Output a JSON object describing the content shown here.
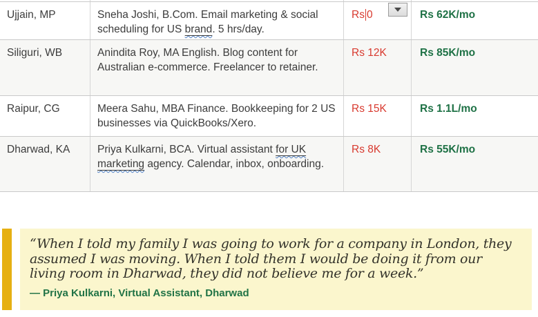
{
  "colors": {
    "cost_red": "#d8392e",
    "income_green": "#1e7145",
    "attribution_green": "#217346",
    "quote_background": "#fbf6cd",
    "quote_accent_bar": "#e6b012",
    "squiggle_blue": "#4f81c7",
    "row_band_gray": "#f7f7f5"
  },
  "table": {
    "rows": [
      {
        "location": "Ujjain, MP",
        "desc_before": "Sneha Joshi, B.Com. Email marketing & social scheduling for US ",
        "desc_underlined": "brand",
        "desc_after": ". 5 hrs/day.",
        "cost_before": "Rs",
        "cost_after": "0",
        "income": "Rs 62K/mo"
      },
      {
        "location": "Siliguri, WB",
        "description": "Anindita Roy, MA English. Blog content for Australian e-commerce. Freelancer to retainer.",
        "cost": "Rs 12K",
        "income": "Rs 85K/mo"
      },
      {
        "location": "Raipur, CG",
        "description": "Meera Sahu, MBA Finance. Bookkeeping for 2 US businesses via QuickBooks/Xero.",
        "cost": "Rs 15K",
        "income": "Rs 1.1L/mo"
      },
      {
        "location": "Dharwad, KA",
        "desc_before": "Priya Kulkarni, BCA. Virtual assistant ",
        "desc_underlined_1": "for UK",
        "desc_mid": " ",
        "desc_underlined_2": "marketing",
        "desc_after": " agency. Calendar, inbox, onboarding.",
        "cost": "Rs 8K",
        "income": "Rs 55K/mo"
      }
    ]
  },
  "quote": {
    "text": "“When I told my family I was going to work for a company in London, they assumed I was moving. When I told them I would be doing it from our living room in Dharwad, they did not believe me for a week.”",
    "attribution": "— Priya Kulkarni, Virtual Assistant, Dharwad"
  }
}
